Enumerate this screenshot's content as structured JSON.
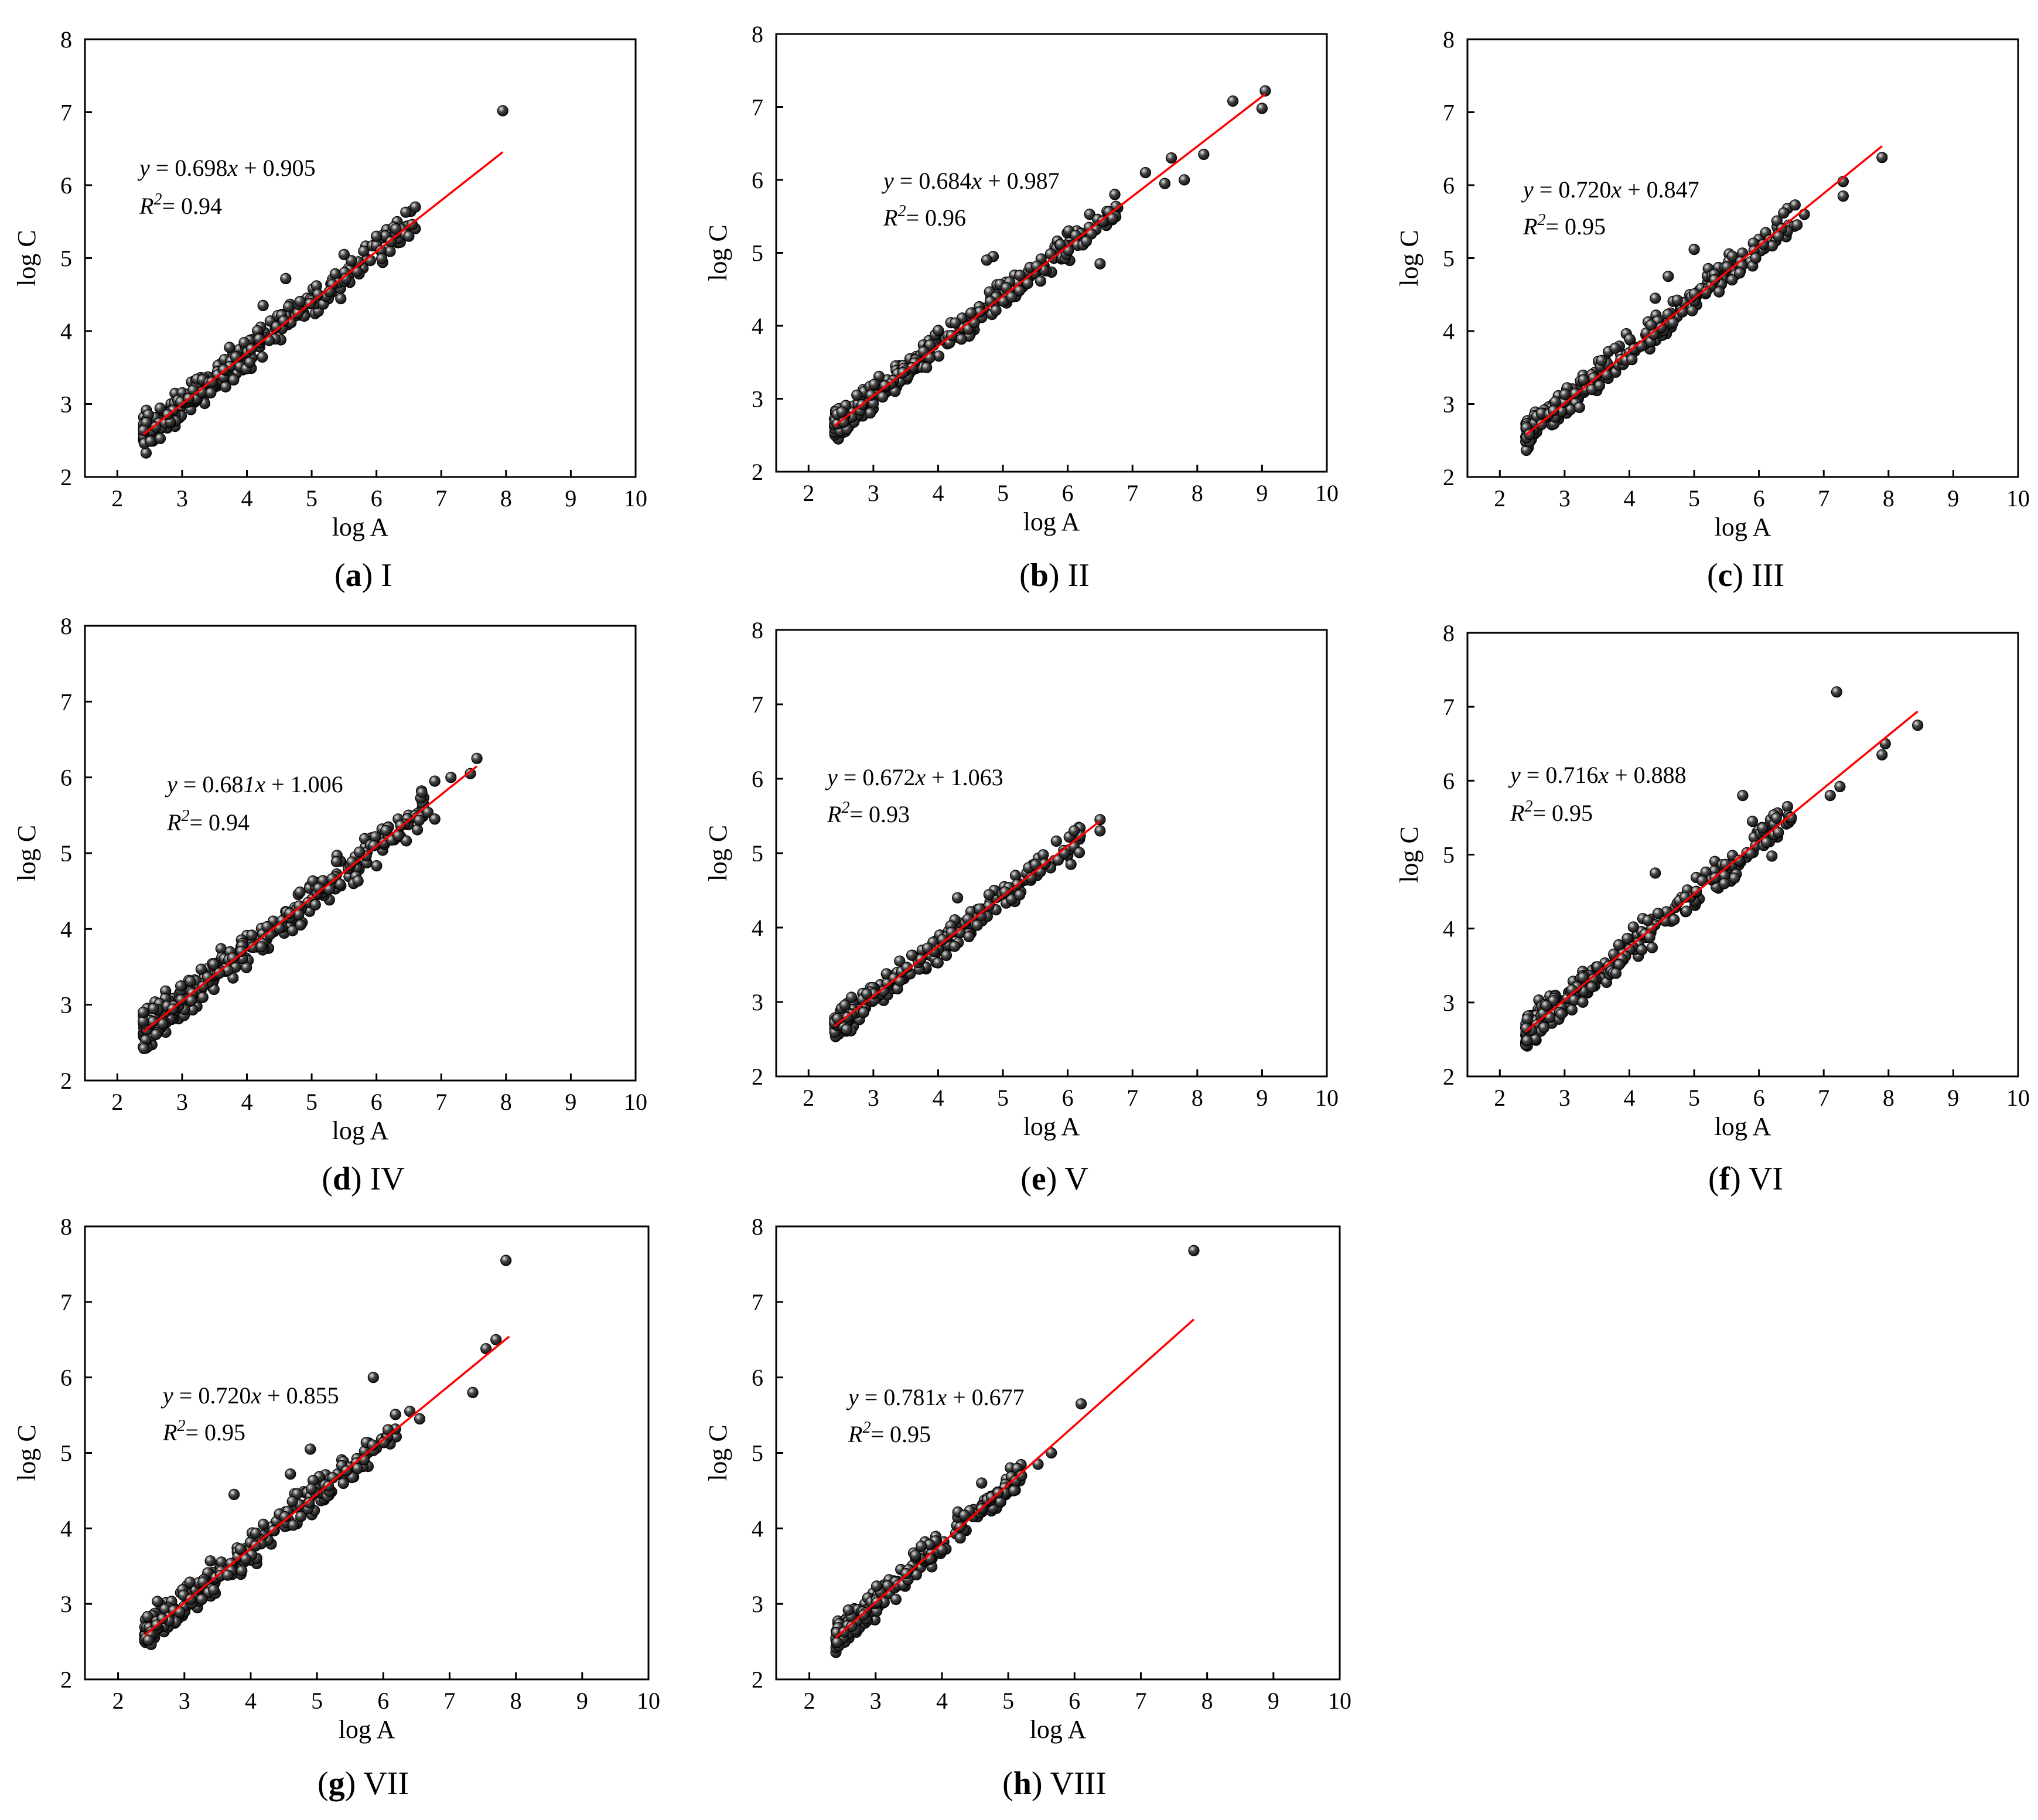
{
  "colors": {
    "points": "#111111",
    "point_highlight": "#e6e6e6",
    "fit_line": "#ff0000",
    "axes": "#000000",
    "background": "#ffffff"
  },
  "chart_data": [
    {
      "id": "a",
      "type": "scatter",
      "caption_letter": "(a)",
      "caption_group": "I",
      "xlabel": "log A",
      "ylabel": "log C",
      "xlim": [
        1.5,
        10
      ],
      "ylim": [
        2,
        8
      ],
      "xticks": [
        2,
        3,
        4,
        5,
        6,
        7,
        8,
        9,
        10
      ],
      "yticks": [
        2,
        3,
        4,
        5,
        6,
        7,
        8
      ],
      "fit": {
        "slope": 0.698,
        "intercept": 0.905,
        "x_range": [
          2.4,
          7.95
        ]
      },
      "equation": {
        "y": "y",
        "eq1": " = 0.698",
        "x": "x",
        "eq2": " + 0.905",
        "r": "R",
        "r_sup": "2",
        "r_val": "= 0.94"
      },
      "scatter_profile": {
        "x_range": [
          2.4,
          6.6
        ],
        "spread": 0.14,
        "count": 320,
        "seed": 11
      },
      "outliers": [
        [
          7.95,
          7.02
        ],
        [
          6.6,
          5.7
        ],
        [
          6.5,
          5.3
        ],
        [
          6.3,
          5.4
        ],
        [
          6.0,
          5.3
        ],
        [
          5.5,
          5.05
        ],
        [
          4.6,
          4.72
        ],
        [
          4.25,
          4.35
        ]
      ]
    },
    {
      "id": "b",
      "type": "scatter",
      "caption_letter": "(b)",
      "caption_group": "II",
      "xlabel": "log A",
      "ylabel": "log C",
      "xlim": [
        1.5,
        10
      ],
      "ylim": [
        2,
        8
      ],
      "xticks": [
        2,
        3,
        4,
        5,
        6,
        7,
        8,
        9,
        10
      ],
      "yticks": [
        2,
        3,
        4,
        5,
        6,
        7,
        8
      ],
      "fit": {
        "slope": 0.684,
        "intercept": 0.987,
        "x_range": [
          2.4,
          9.05
        ]
      },
      "equation": {
        "y": "y",
        "eq1": " = 0.684",
        "x": "x",
        "eq2": " + 0.987",
        "r": "R",
        "r_sup": "2",
        "r_val": "= 0.96"
      },
      "scatter_profile": {
        "x_range": [
          2.4,
          6.8
        ],
        "spread": 0.13,
        "count": 320,
        "seed": 23
      },
      "outliers": [
        [
          9.05,
          7.22
        ],
        [
          9.0,
          6.98
        ],
        [
          8.55,
          7.08
        ],
        [
          8.1,
          6.35
        ],
        [
          7.8,
          6.0
        ],
        [
          7.6,
          6.3
        ],
        [
          7.5,
          5.95
        ],
        [
          7.2,
          6.1
        ],
        [
          6.5,
          4.85
        ],
        [
          4.85,
          4.95
        ],
        [
          4.75,
          4.9
        ]
      ]
    },
    {
      "id": "c",
      "type": "scatter",
      "caption_letter": "(c)",
      "caption_group": "III",
      "xlabel": "log A",
      "ylabel": "log C",
      "xlim": [
        1.5,
        10
      ],
      "ylim": [
        2,
        8
      ],
      "xticks": [
        2,
        3,
        4,
        5,
        6,
        7,
        8,
        9,
        10
      ],
      "yticks": [
        2,
        3,
        4,
        5,
        6,
        7,
        8
      ],
      "fit": {
        "slope": 0.72,
        "intercept": 0.847,
        "x_range": [
          2.4,
          7.9
        ]
      },
      "equation": {
        "y": "y",
        "eq1": " = 0.720",
        "x": "x",
        "eq2": " + 0.847",
        "r": "R",
        "r_sup": "2",
        "r_val": "= 0.95"
      },
      "scatter_profile": {
        "x_range": [
          2.4,
          6.6
        ],
        "spread": 0.13,
        "count": 300,
        "seed": 37
      },
      "outliers": [
        [
          7.9,
          6.38
        ],
        [
          7.3,
          6.05
        ],
        [
          7.3,
          5.85
        ],
        [
          6.7,
          5.6
        ],
        [
          6.3,
          5.3
        ],
        [
          5.95,
          5.0
        ],
        [
          5.0,
          5.12
        ],
        [
          4.6,
          4.75
        ],
        [
          4.4,
          4.45
        ]
      ]
    },
    {
      "id": "d",
      "type": "scatter",
      "caption_letter": "(d)",
      "caption_group": "IV",
      "xlabel": "log A",
      "ylabel": "log C",
      "xlim": [
        1.5,
        10
      ],
      "ylim": [
        2,
        8
      ],
      "xticks": [
        2,
        3,
        4,
        5,
        6,
        7,
        8,
        9,
        10
      ],
      "yticks": [
        2,
        3,
        4,
        5,
        6,
        7,
        8
      ],
      "fit": {
        "slope": 0.681,
        "intercept": 1.006,
        "x_range": [
          2.4,
          7.55
        ]
      },
      "equation": {
        "y": "y",
        "eq1": " = 0.68",
        "x": "1x",
        "eq2": " + 1.006",
        "r": "R",
        "r_sup": "2",
        "r_val": "= 0.94"
      },
      "scatter_profile": {
        "x_range": [
          2.4,
          6.8
        ],
        "spread": 0.15,
        "count": 360,
        "seed": 41
      },
      "outliers": [
        [
          7.55,
          6.25
        ],
        [
          7.45,
          6.05
        ],
        [
          7.15,
          6.0
        ],
        [
          6.9,
          5.95
        ],
        [
          6.9,
          5.45
        ],
        [
          6.7,
          5.8
        ],
        [
          2.4,
          2.9
        ]
      ]
    },
    {
      "id": "e",
      "type": "scatter",
      "caption_letter": "(e)",
      "caption_group": "V",
      "xlabel": "log A",
      "ylabel": "log C",
      "xlim": [
        1.5,
        10
      ],
      "ylim": [
        2,
        8
      ],
      "xticks": [
        2,
        3,
        4,
        5,
        6,
        7,
        8,
        9,
        10
      ],
      "yticks": [
        2,
        3,
        4,
        5,
        6,
        7,
        8
      ],
      "fit": {
        "slope": 0.672,
        "intercept": 1.063,
        "x_range": [
          2.4,
          6.5
        ]
      },
      "equation": {
        "y": "y",
        "eq1": " = 0.672",
        "x": "x",
        "eq2": " + 1.063",
        "r": "R",
        "r_sup": "2",
        "r_val": "= 0.93"
      },
      "scatter_profile": {
        "x_range": [
          2.4,
          6.2
        ],
        "spread": 0.13,
        "count": 240,
        "seed": 53
      },
      "outliers": [
        [
          6.5,
          5.45
        ],
        [
          6.5,
          5.3
        ],
        [
          6.1,
          5.3
        ],
        [
          6.05,
          4.85
        ],
        [
          5.95,
          5.0
        ],
        [
          4.3,
          4.4
        ]
      ]
    },
    {
      "id": "f",
      "type": "scatter",
      "caption_letter": "(f)",
      "caption_group": "VI",
      "xlabel": "log A",
      "ylabel": "log C",
      "xlim": [
        1.5,
        10
      ],
      "ylim": [
        2,
        8
      ],
      "xticks": [
        2,
        3,
        4,
        5,
        6,
        7,
        8,
        9,
        10
      ],
      "yticks": [
        2,
        3,
        4,
        5,
        6,
        7,
        8
      ],
      "fit": {
        "slope": 0.716,
        "intercept": 0.888,
        "x_range": [
          2.4,
          8.45
        ]
      },
      "equation": {
        "y": "y",
        "eq1": " = 0.716",
        "x": "x",
        "eq2": " + 0.888",
        "r": "R",
        "r_sup": "2",
        "r_val": "= 0.95"
      },
      "scatter_profile": {
        "x_range": [
          2.4,
          6.5
        ],
        "spread": 0.14,
        "count": 320,
        "seed": 67
      },
      "outliers": [
        [
          8.45,
          6.75
        ],
        [
          7.95,
          6.5
        ],
        [
          7.9,
          6.35
        ],
        [
          7.25,
          5.92
        ],
        [
          7.2,
          7.2
        ],
        [
          7.1,
          5.8
        ],
        [
          6.5,
          5.5
        ],
        [
          6.3,
          5.3
        ],
        [
          6.2,
          4.98
        ],
        [
          5.9,
          5.45
        ],
        [
          5.75,
          5.8
        ],
        [
          4.4,
          4.75
        ]
      ]
    },
    {
      "id": "g",
      "type": "scatter",
      "caption_letter": "(g)",
      "caption_group": "VII",
      "xlabel": "log A",
      "ylabel": "log C",
      "xlim": [
        1.5,
        10
      ],
      "ylim": [
        2,
        8
      ],
      "xticks": [
        2,
        3,
        4,
        5,
        6,
        7,
        8,
        9,
        10
      ],
      "yticks": [
        2,
        3,
        4,
        5,
        6,
        7,
        8
      ],
      "fit": {
        "slope": 0.72,
        "intercept": 0.855,
        "x_range": [
          2.4,
          7.9
        ]
      },
      "equation": {
        "y": "y",
        "eq1": " = 0.720",
        "x": "x",
        "eq2": " + 0.855",
        "r": "R",
        "r_sup": "2",
        "r_val": "= 0.95"
      },
      "scatter_profile": {
        "x_range": [
          2.4,
          6.2
        ],
        "spread": 0.14,
        "count": 300,
        "seed": 79
      },
      "outliers": [
        [
          7.85,
          7.55
        ],
        [
          7.7,
          6.5
        ],
        [
          7.55,
          6.38
        ],
        [
          7.35,
          5.8
        ],
        [
          6.55,
          5.45
        ],
        [
          6.4,
          5.55
        ],
        [
          5.85,
          6.0
        ],
        [
          4.9,
          5.05
        ],
        [
          4.6,
          4.72
        ],
        [
          3.75,
          4.45
        ]
      ]
    },
    {
      "id": "h",
      "type": "scatter",
      "caption_letter": "(h)",
      "caption_group": "VIII",
      "xlabel": "log A",
      "ylabel": "log C",
      "xlim": [
        1.5,
        10
      ],
      "ylim": [
        2,
        8
      ],
      "xticks": [
        2,
        3,
        4,
        5,
        6,
        7,
        8,
        9,
        10
      ],
      "yticks": [
        2,
        3,
        4,
        5,
        6,
        7,
        8
      ],
      "fit": {
        "slope": 0.781,
        "intercept": 0.677,
        "x_range": [
          2.4,
          7.8
        ]
      },
      "equation": {
        "y": "y",
        "eq1": " = 0.781",
        "x": "x",
        "eq2": " + 0.677",
        "r": "R",
        "r_sup": "2",
        "r_val": "= 0.95"
      },
      "scatter_profile": {
        "x_range": [
          2.4,
          5.2
        ],
        "spread": 0.12,
        "count": 230,
        "seed": 97
      },
      "outliers": [
        [
          7.8,
          7.68
        ],
        [
          6.1,
          5.65
        ],
        [
          5.65,
          5.0
        ],
        [
          5.45,
          4.85
        ],
        [
          5.2,
          4.7
        ],
        [
          4.6,
          4.6
        ]
      ]
    }
  ]
}
